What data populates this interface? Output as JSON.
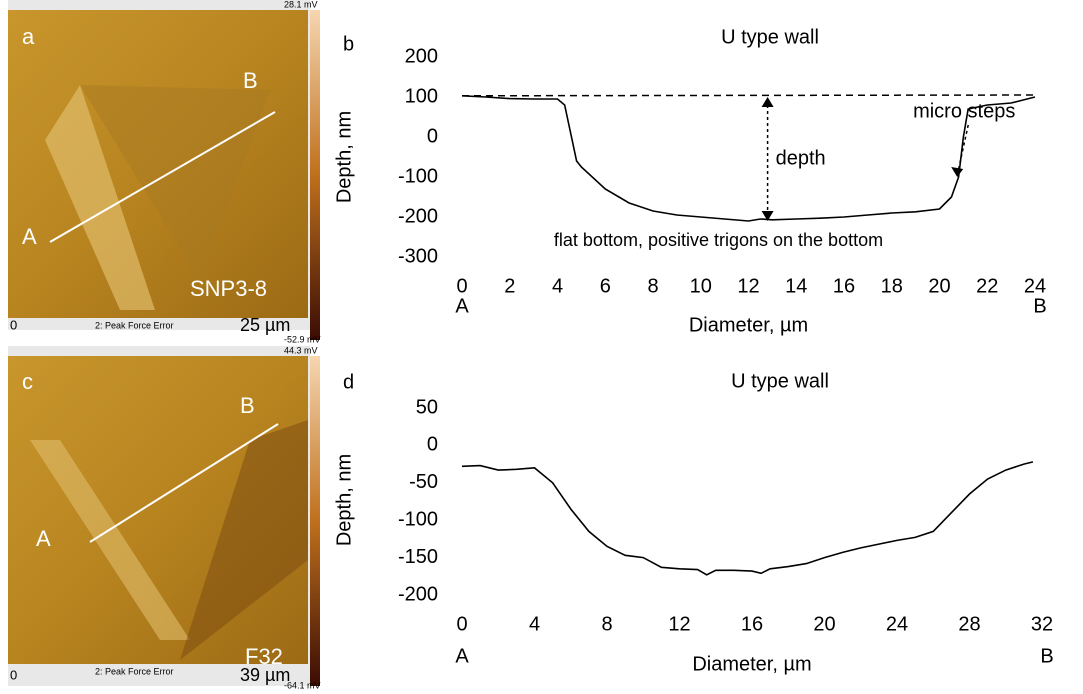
{
  "images": [
    {
      "letter": "a",
      "point_a": "A",
      "point_b": "B",
      "sample": "SNP3-8",
      "scale_start": "0",
      "channel": "2: Peak Force Error",
      "scale_end": "25 µm",
      "max": "28.1 mV",
      "min": "-52.9 mV"
    },
    {
      "letter": "c",
      "point_a": "A",
      "point_b": "B",
      "sample": "F32",
      "scale_start": "0",
      "channel": "2: Peak Force Error",
      "scale_end": "39 µm",
      "max": "44.3 mV",
      "min": "-64.1 mV"
    }
  ],
  "chart_data": [
    {
      "type": "line",
      "panel": "b",
      "title": "U type wall",
      "x_label": "Diameter, µm",
      "y_label": "Depth, nm",
      "end_labels": [
        "A",
        "B"
      ],
      "xlim": [
        0,
        24
      ],
      "xticks": [
        0,
        2,
        4,
        6,
        8,
        10,
        12,
        14,
        16,
        18,
        20,
        22,
        24
      ],
      "ylim": [
        -300,
        200
      ],
      "yticks": [
        200,
        100,
        0,
        -100,
        -200,
        -300
      ],
      "series": [
        {
          "color": "#000000",
          "x": [
            0,
            1,
            2,
            3,
            4,
            4.3,
            4.8,
            5,
            6,
            7,
            8,
            9,
            10,
            11,
            12,
            12.5,
            13,
            14,
            15,
            16,
            17,
            18,
            19,
            20,
            20.5,
            20.8,
            21,
            21.2,
            22,
            23,
            24
          ],
          "values": [
            103,
            100,
            96,
            95,
            95,
            80,
            -60,
            -75,
            -130,
            -165,
            -185,
            -195,
            -200,
            -205,
            -210,
            -205,
            -207,
            -205,
            -203,
            -200,
            -195,
            -190,
            -187,
            -180,
            -150,
            -100,
            0,
            70,
            80,
            85,
            100
          ]
        },
        {
          "color": "#000000",
          "dash": true,
          "x": [
            0,
            24
          ],
          "values": [
            103,
            105
          ]
        }
      ],
      "annotations": [
        {
          "text": "depth",
          "x": 12.8,
          "y_from": 100,
          "y_to": -210
        },
        {
          "text": "micro steps",
          "x": 20.7,
          "y": -100
        },
        {
          "text": "flat bottom, positive trigons on the bottom"
        }
      ]
    },
    {
      "type": "line",
      "panel": "d",
      "title": "U type wall",
      "x_label": "Diameter, µm",
      "y_label": "Depth, nm",
      "end_labels": [
        "A",
        "B"
      ],
      "xlim": [
        0,
        32
      ],
      "xticks": [
        0,
        4,
        8,
        12,
        16,
        20,
        24,
        28,
        32
      ],
      "ylim": [
        -200,
        50
      ],
      "yticks": [
        50,
        0,
        -50,
        -100,
        -150,
        -200
      ],
      "series": [
        {
          "color": "#000000",
          "x": [
            0,
            1,
            2,
            3,
            4,
            5,
            6,
            7,
            8,
            9,
            10,
            11,
            12,
            13,
            13.5,
            14,
            15,
            16,
            16.5,
            17,
            18,
            19,
            20,
            21,
            22,
            23,
            24,
            25,
            26,
            27,
            28,
            29,
            30,
            31,
            31.5
          ],
          "values": [
            -28,
            -27,
            -33,
            -32,
            -30,
            -50,
            -85,
            -115,
            -135,
            -147,
            -150,
            -163,
            -165,
            -166,
            -173,
            -167,
            -167,
            -168,
            -171,
            -165,
            -162,
            -158,
            -150,
            -143,
            -137,
            -132,
            -127,
            -123,
            -115,
            -90,
            -65,
            -45,
            -33,
            -25,
            -22
          ]
        }
      ],
      "annotations": []
    }
  ]
}
